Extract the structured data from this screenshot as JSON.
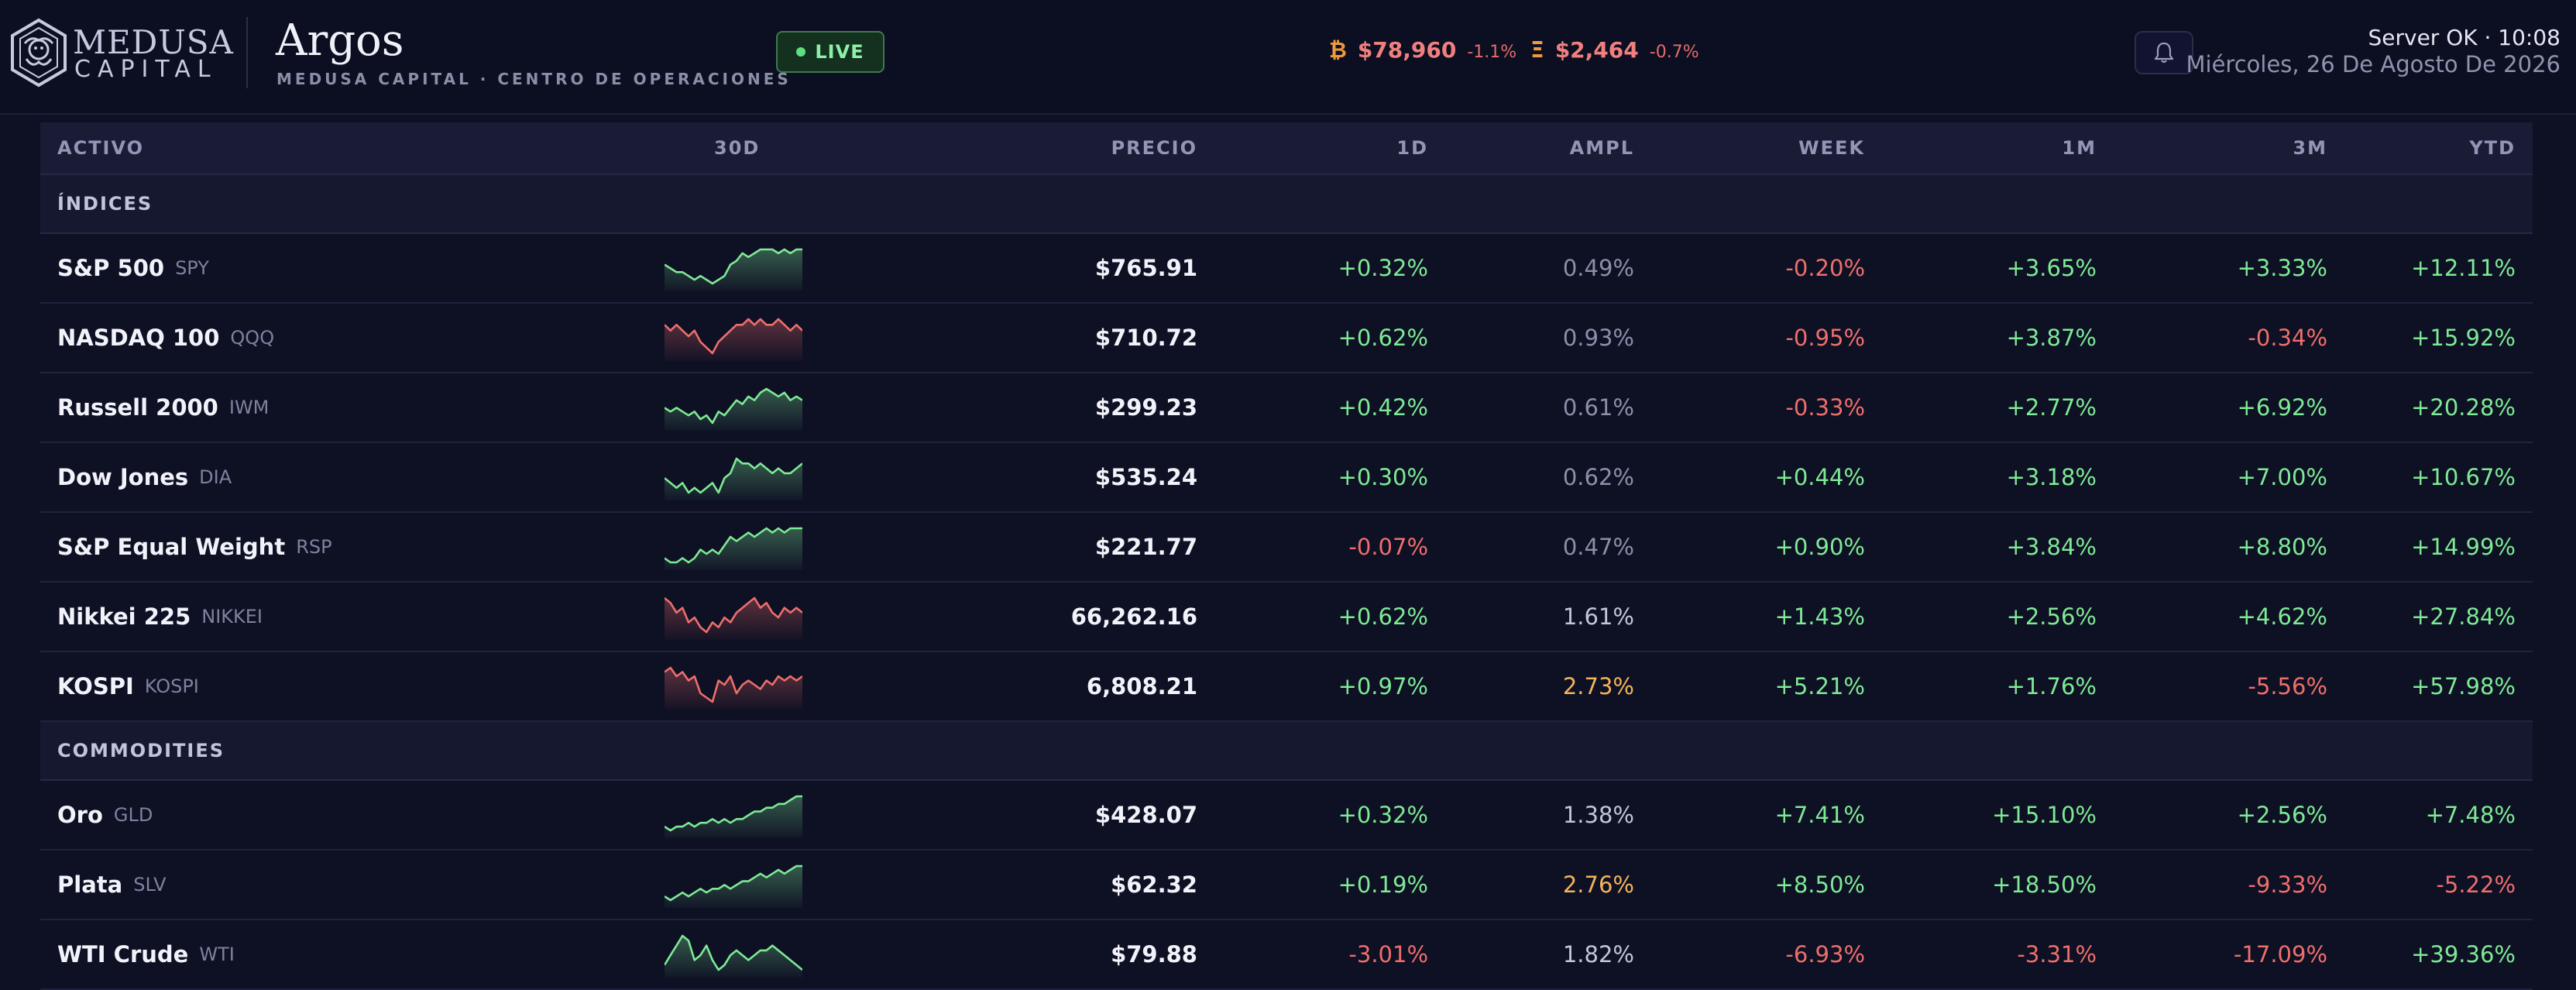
{
  "header": {
    "brand_top": "MEDUSA",
    "brand_bottom": "CAPITAL",
    "title": "Argos",
    "subtitle": "MEDUSA CAPITAL · CENTRO DE OPERACIONES",
    "live_label": "LIVE",
    "tickers": [
      {
        "icon": "₿",
        "price": "$78,960",
        "change": "-1.1%",
        "icon_color": "#f09a3e"
      },
      {
        "icon": "Ξ",
        "price": "$2,464",
        "change": "-0.7%",
        "icon_color": "#f09a3e"
      }
    ],
    "status": "Server OK · 10:08",
    "date": "Miércoles, 26 De Agosto De 2026"
  },
  "table": {
    "columns": [
      "ACTIVO",
      "30D",
      "PRECIO",
      "1D",
      "AMPL",
      "WEEK",
      "1M",
      "3M",
      "YTD"
    ],
    "sections": [
      {
        "title": "ÍNDICES",
        "rows": [
          {
            "name": "S&P 500",
            "ticker": "SPY",
            "price": "$765.91",
            "d1": "+0.32%",
            "ampl": "0.49%",
            "week": "-0.20%",
            "m1": "+3.65%",
            "m3": "+3.33%",
            "ytd": "+12.11%",
            "trend": "up",
            "spark": [
              5,
              4,
              3,
              3,
              2,
              1,
              2,
              1,
              0,
              1,
              2,
              5,
              6,
              8,
              7,
              8,
              9,
              9,
              9,
              8,
              9,
              8,
              9,
              9
            ]
          },
          {
            "name": "NASDAQ 100",
            "ticker": "QQQ",
            "price": "$710.72",
            "d1": "+0.62%",
            "ampl": "0.93%",
            "week": "-0.95%",
            "m1": "+3.87%",
            "m3": "-0.34%",
            "ytd": "+15.92%",
            "trend": "down",
            "spark": [
              7,
              6,
              7,
              6,
              5,
              6,
              4,
              3,
              2,
              4,
              5,
              6,
              7,
              7,
              8,
              7,
              8,
              7,
              7,
              8,
              7,
              6,
              7,
              6
            ]
          },
          {
            "name": "Russell 2000",
            "ticker": "IWM",
            "price": "$299.23",
            "d1": "+0.42%",
            "ampl": "0.61%",
            "week": "-0.33%",
            "m1": "+2.77%",
            "m3": "+6.92%",
            "ytd": "+20.28%",
            "trend": "up",
            "spark": [
              4,
              3,
              4,
              3,
              2,
              3,
              1,
              2,
              0,
              3,
              2,
              4,
              6,
              5,
              7,
              6,
              8,
              9,
              8,
              7,
              8,
              6,
              7,
              6
            ]
          },
          {
            "name": "Dow Jones",
            "ticker": "DIA",
            "price": "$535.24",
            "d1": "+0.30%",
            "ampl": "0.62%",
            "week": "+0.44%",
            "m1": "+3.18%",
            "m3": "+7.00%",
            "ytd": "+10.67%",
            "trend": "up",
            "spark": [
              5,
              4,
              3,
              4,
              2,
              3,
              2,
              3,
              4,
              2,
              5,
              6,
              9,
              8,
              8,
              7,
              8,
              7,
              6,
              7,
              6,
              6,
              7,
              8
            ]
          },
          {
            "name": "S&P Equal Weight",
            "ticker": "RSP",
            "price": "$221.77",
            "d1": "-0.07%",
            "ampl": "0.47%",
            "week": "+0.90%",
            "m1": "+3.84%",
            "m3": "+8.80%",
            "ytd": "+14.99%",
            "trend": "up",
            "spark": [
              2,
              1,
              1,
              2,
              1,
              2,
              4,
              3,
              4,
              3,
              5,
              7,
              6,
              7,
              8,
              7,
              8,
              9,
              8,
              9,
              8,
              9,
              9,
              9
            ]
          },
          {
            "name": "Nikkei 225",
            "ticker": "NIKKEI",
            "price": "66,262.16",
            "d1": "+0.62%",
            "ampl": "1.61%",
            "week": "+1.43%",
            "m1": "+2.56%",
            "m3": "+4.62%",
            "ytd": "+27.84%",
            "trend": "down",
            "spark": [
              9,
              8,
              6,
              7,
              4,
              5,
              3,
              2,
              4,
              3,
              5,
              4,
              6,
              7,
              8,
              9,
              7,
              8,
              6,
              5,
              7,
              6,
              7,
              6
            ]
          },
          {
            "name": "KOSPI",
            "ticker": "KOSPI",
            "price": "6,808.21",
            "d1": "+0.97%",
            "ampl": "2.73%",
            "week": "+5.21%",
            "m1": "+1.76%",
            "m3": "-5.56%",
            "ytd": "+57.98%",
            "trend": "down",
            "spark": [
              8,
              9,
              7,
              8,
              6,
              7,
              3,
              2,
              1,
              6,
              5,
              7,
              3,
              5,
              6,
              5,
              4,
              6,
              5,
              7,
              6,
              7,
              6,
              7
            ]
          }
        ]
      },
      {
        "title": "COMMODITIES",
        "rows": [
          {
            "name": "Oro",
            "ticker": "GLD",
            "price": "$428.07",
            "d1": "+0.32%",
            "ampl": "1.38%",
            "week": "+7.41%",
            "m1": "+15.10%",
            "m3": "+2.56%",
            "ytd": "+7.48%",
            "trend": "up",
            "spark": [
              1,
              0,
              1,
              1,
              2,
              1,
              2,
              2,
              3,
              2,
              3,
              2,
              3,
              3,
              4,
              5,
              5,
              6,
              6,
              7,
              7,
              8,
              9,
              9
            ]
          },
          {
            "name": "Plata",
            "ticker": "SLV",
            "price": "$62.32",
            "d1": "+0.19%",
            "ampl": "2.76%",
            "week": "+8.50%",
            "m1": "+18.50%",
            "m3": "-9.33%",
            "ytd": "-5.22%",
            "trend": "up",
            "spark": [
              1,
              0,
              1,
              2,
              1,
              2,
              3,
              2,
              3,
              3,
              4,
              3,
              4,
              5,
              5,
              6,
              7,
              6,
              7,
              8,
              7,
              8,
              9,
              9
            ]
          },
          {
            "name": "WTI Crude",
            "ticker": "WTI",
            "price": "$79.88",
            "d1": "-3.01%",
            "ampl": "1.82%",
            "week": "-6.93%",
            "m1": "-3.31%",
            "m3": "-17.09%",
            "ytd": "+39.36%",
            "trend": "up",
            "spark": [
              2,
              4,
              6,
              8,
              7,
              3,
              4,
              6,
              3,
              1,
              2,
              4,
              5,
              4,
              3,
              4,
              5,
              5,
              6,
              5,
              4,
              3,
              2,
              1
            ]
          }
        ]
      }
    ]
  },
  "colors": {
    "positive": "#7eea95",
    "negative": "#ef6e6b",
    "neutral": "#8b8fa9",
    "warning": "#f5b35a",
    "background": "#0e1024",
    "live_green": "#5fe07f"
  },
  "icons": {
    "logo": "medusa-logo-icon",
    "bell": "bell-icon",
    "live_dot": "live-dot-icon"
  }
}
